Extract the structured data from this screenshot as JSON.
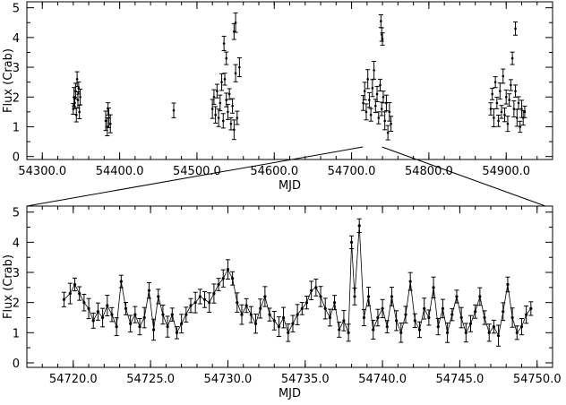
{
  "chart_data": [
    {
      "type": "scatter",
      "title": "",
      "xlabel": "MJD",
      "ylabel": "Flux (Crab)",
      "xlim": [
        54280,
        54960
      ],
      "ylim": [
        -0.1,
        5.2
      ],
      "xticks": [
        54300,
        54400,
        54500,
        54600,
        54700,
        54800,
        54900
      ],
      "xtick_labels": [
        "54300.0",
        "54400.0",
        "54500.0",
        "54600.0",
        "54700.0",
        "54800.0",
        "54900.0"
      ],
      "yticks": [
        0,
        1,
        2,
        3,
        4,
        5
      ],
      "ytick_labels": [
        "0",
        "1",
        "2",
        "3",
        "4",
        "5"
      ],
      "error_bars": true,
      "marker": "black error bars with short caps",
      "series": [
        {
          "points": [
            [
              54340,
              1.6
            ],
            [
              54341,
              2.0
            ],
            [
              54342,
              1.8
            ],
            [
              54343,
              2.2
            ],
            [
              54344,
              1.4
            ],
            [
              54345,
              2.6
            ],
            [
              54346,
              1.9
            ],
            [
              54347,
              2.3
            ],
            [
              54348,
              1.5
            ],
            [
              54349,
              2.0
            ],
            [
              54382,
              1.2
            ],
            [
              54384,
              1.0
            ],
            [
              54385,
              1.6
            ],
            [
              54386,
              1.3
            ],
            [
              54388,
              1.1
            ],
            [
              54470,
              1.55
            ],
            [
              54520,
              1.6
            ],
            [
              54522,
              2.0
            ],
            [
              54524,
              1.4
            ],
            [
              54526,
              2.2
            ],
            [
              54528,
              1.3
            ],
            [
              54530,
              1.8
            ],
            [
              54532,
              2.5
            ],
            [
              54534,
              1.2
            ],
            [
              54536,
              2.6
            ],
            [
              54538,
              1.9
            ],
            [
              54540,
              1.5
            ],
            [
              54542,
              2.1
            ],
            [
              54544,
              1.1
            ],
            [
              54546,
              1.7
            ],
            [
              54548,
              0.9
            ],
            [
              54550,
              2.8
            ],
            [
              54552,
              1.3
            ],
            [
              54535,
              3.8
            ],
            [
              54538,
              3.3
            ],
            [
              54548,
              4.2
            ],
            [
              54550,
              4.5
            ],
            [
              54555,
              3.0
            ],
            [
              54715,
              1.8
            ],
            [
              54717,
              2.2
            ],
            [
              54719,
              1.5
            ],
            [
              54721,
              2.6
            ],
            [
              54723,
              1.9
            ],
            [
              54725,
              1.4
            ],
            [
              54727,
              2.3
            ],
            [
              54729,
              2.9
            ],
            [
              54731,
              1.7
            ],
            [
              54733,
              2.1
            ],
            [
              54735,
              1.3
            ],
            [
              54737,
              2.4
            ],
            [
              54739,
              1.6
            ],
            [
              54741,
              2.0
            ],
            [
              54743,
              1.2
            ],
            [
              54745,
              1.8
            ],
            [
              54747,
              0.8
            ],
            [
              54749,
              1.5
            ],
            [
              54751,
              1.1
            ],
            [
              54738,
              4.55
            ],
            [
              54739,
              4.1
            ],
            [
              54740,
              3.95
            ],
            [
              54880,
              1.6
            ],
            [
              54882,
              2.1
            ],
            [
              54884,
              1.3
            ],
            [
              54886,
              2.5
            ],
            [
              54888,
              1.8
            ],
            [
              54890,
              1.2
            ],
            [
              54892,
              2.2
            ],
            [
              54894,
              1.5
            ],
            [
              54896,
              2.7
            ],
            [
              54898,
              1.4
            ],
            [
              54900,
              2.0
            ],
            [
              54902,
              1.1
            ],
            [
              54904,
              1.9
            ],
            [
              54906,
              2.4
            ],
            [
              54908,
              3.3
            ],
            [
              54910,
              1.6
            ],
            [
              54912,
              2.2
            ],
            [
              54914,
              1.3
            ],
            [
              54916,
              1.8
            ],
            [
              54918,
              1.0
            ],
            [
              54920,
              1.6
            ],
            [
              54922,
              1.3
            ],
            [
              54924,
              1.5
            ],
            [
              54912,
              4.3
            ]
          ]
        }
      ]
    },
    {
      "type": "line",
      "title": "",
      "xlabel": "MJD",
      "ylabel": "Flux (Crab)",
      "xlim": [
        54717,
        54751
      ],
      "ylim": [
        -0.15,
        5.2
      ],
      "xticks": [
        54720,
        54725,
        54730,
        54735,
        54740,
        54745,
        54750
      ],
      "xtick_labels": [
        "54720.0",
        "54725.0",
        "54730.0",
        "54735.0",
        "54740.0",
        "54745.0",
        "54750.0"
      ],
      "yticks": [
        0,
        1,
        2,
        3,
        4,
        5
      ],
      "ytick_labels": [
        "0",
        "1",
        "2",
        "3",
        "4",
        "5"
      ],
      "error_bars": true,
      "marker": "small black dots with error bars, connected by a thin line",
      "zoom_of_range": [
        54717,
        54751
      ],
      "series": [
        {
          "points": [
            [
              54719.4,
              2.1
            ],
            [
              54719.8,
              2.3
            ],
            [
              54720.1,
              2.6
            ],
            [
              54720.4,
              2.3
            ],
            [
              54720.7,
              2.0
            ],
            [
              54721.0,
              1.8
            ],
            [
              54721.3,
              1.4
            ],
            [
              54721.6,
              1.7
            ],
            [
              54721.9,
              1.5
            ],
            [
              54722.2,
              1.9
            ],
            [
              54722.5,
              1.6
            ],
            [
              54722.8,
              1.2
            ],
            [
              54723.1,
              2.7
            ],
            [
              54723.4,
              1.8
            ],
            [
              54723.7,
              1.3
            ],
            [
              54724.0,
              1.6
            ],
            [
              54724.3,
              1.2
            ],
            [
              54724.6,
              1.5
            ],
            [
              54724.9,
              2.4
            ],
            [
              54725.2,
              1.1
            ],
            [
              54725.5,
              2.2
            ],
            [
              54725.8,
              1.6
            ],
            [
              54726.1,
              1.2
            ],
            [
              54726.4,
              1.6
            ],
            [
              54726.7,
              1.0
            ],
            [
              54727.0,
              1.3
            ],
            [
              54727.3,
              1.6
            ],
            [
              54727.6,
              1.9
            ],
            [
              54727.9,
              2.0
            ],
            [
              54728.2,
              2.2
            ],
            [
              54728.5,
              2.1
            ],
            [
              54728.8,
              2.0
            ],
            [
              54729.1,
              2.3
            ],
            [
              54729.4,
              2.6
            ],
            [
              54729.7,
              2.8
            ],
            [
              54730.0,
              3.1
            ],
            [
              54730.3,
              2.8
            ],
            [
              54730.6,
              2.0
            ],
            [
              54730.9,
              1.6
            ],
            [
              54731.2,
              1.9
            ],
            [
              54731.5,
              1.6
            ],
            [
              54731.8,
              1.3
            ],
            [
              54732.1,
              1.8
            ],
            [
              54732.4,
              2.2
            ],
            [
              54732.7,
              1.6
            ],
            [
              54733.0,
              1.4
            ],
            [
              54733.3,
              1.2
            ],
            [
              54733.6,
              1.5
            ],
            [
              54733.9,
              1.0
            ],
            [
              54734.2,
              1.3
            ],
            [
              54734.5,
              1.6
            ],
            [
              54734.8,
              1.8
            ],
            [
              54735.1,
              2.0
            ],
            [
              54735.4,
              2.4
            ],
            [
              54735.7,
              2.5
            ],
            [
              54736.0,
              2.2
            ],
            [
              54736.3,
              1.8
            ],
            [
              54736.6,
              1.5
            ],
            [
              54736.9,
              2.0
            ],
            [
              54737.2,
              1.1
            ],
            [
              54737.5,
              1.4
            ],
            [
              54737.8,
              1.0
            ],
            [
              54738.0,
              4.0
            ],
            [
              54738.2,
              2.2
            ],
            [
              54738.5,
              4.55
            ],
            [
              54738.8,
              1.5
            ],
            [
              54739.1,
              2.2
            ],
            [
              54739.4,
              1.1
            ],
            [
              54739.7,
              1.5
            ],
            [
              54740.0,
              1.8
            ],
            [
              54740.3,
              1.2
            ],
            [
              54740.6,
              2.2
            ],
            [
              54740.9,
              1.4
            ],
            [
              54741.2,
              1.0
            ],
            [
              54741.5,
              1.6
            ],
            [
              54741.8,
              2.7
            ],
            [
              54742.1,
              1.4
            ],
            [
              54742.4,
              1.1
            ],
            [
              54742.7,
              1.8
            ],
            [
              54743.0,
              1.5
            ],
            [
              54743.3,
              2.5
            ],
            [
              54743.6,
              1.2
            ],
            [
              54743.9,
              1.8
            ],
            [
              54744.2,
              1.0
            ],
            [
              54744.5,
              1.6
            ],
            [
              54744.8,
              2.2
            ],
            [
              54745.1,
              1.5
            ],
            [
              54745.4,
              1.0
            ],
            [
              54745.7,
              1.3
            ],
            [
              54746.0,
              1.7
            ],
            [
              54746.3,
              2.2
            ],
            [
              54746.6,
              1.5
            ],
            [
              54746.9,
              1.0
            ],
            [
              54747.2,
              1.2
            ],
            [
              54747.5,
              0.9
            ],
            [
              54747.8,
              1.7
            ],
            [
              54748.1,
              2.6
            ],
            [
              54748.4,
              1.5
            ],
            [
              54748.7,
              1.0
            ],
            [
              54749.0,
              1.2
            ],
            [
              54749.3,
              1.6
            ],
            [
              54749.6,
              1.8
            ]
          ]
        }
      ]
    }
  ]
}
